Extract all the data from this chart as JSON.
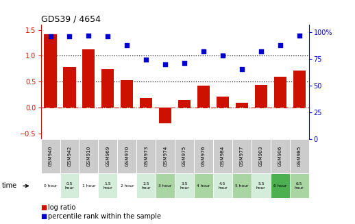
{
  "title": "GDS39 / 4654",
  "samples": [
    "GSM940",
    "GSM942",
    "GSM910",
    "GSM969",
    "GSM970",
    "GSM973",
    "GSM974",
    "GSM975",
    "GSM976",
    "GSM984",
    "GSM977",
    "GSM903",
    "GSM906",
    "GSM985"
  ],
  "time_labels": [
    "0 hour",
    "0.5\nhour",
    "1 hour",
    "1.5\nhour",
    "2 hour",
    "2.5\nhour",
    "3 hour",
    "3.5\nhour",
    "4 hour",
    "4.5\nhour",
    "5 hour",
    "5.5\nhour",
    "6 hour",
    "6.5\nhour"
  ],
  "log_ratio": [
    1.41,
    0.78,
    1.12,
    0.74,
    0.53,
    0.19,
    -0.3,
    0.15,
    0.42,
    0.22,
    0.1,
    0.44,
    0.6,
    0.72
  ],
  "percentile": [
    96,
    96,
    97,
    96,
    88,
    74,
    70,
    71,
    82,
    78,
    65,
    82,
    88,
    97
  ],
  "time_colors": [
    "#ffffff",
    "#d4edda",
    "#ffffff",
    "#d4edda",
    "#ffffff",
    "#d4edda",
    "#a8d5a2",
    "#d4edda",
    "#a8d5a2",
    "#d4edda",
    "#a8d5a2",
    "#d4edda",
    "#4caf50",
    "#a8d5a2"
  ],
  "bar_color": "#cc1100",
  "dot_color": "#0000cc",
  "bg_color": "#ffffff",
  "left_ylim": [
    -0.6,
    1.6
  ],
  "right_ylim": [
    0,
    107
  ],
  "left_yticks": [
    -0.5,
    0.0,
    0.5,
    1.0,
    1.5
  ],
  "right_yticks": [
    0,
    25,
    50,
    75,
    100
  ],
  "hline_y": [
    0.5,
    1.0
  ],
  "zero_line_y": 0.0,
  "sample_bg": "#cccccc",
  "figsize": [
    5.18,
    3.27
  ],
  "dpi": 100
}
